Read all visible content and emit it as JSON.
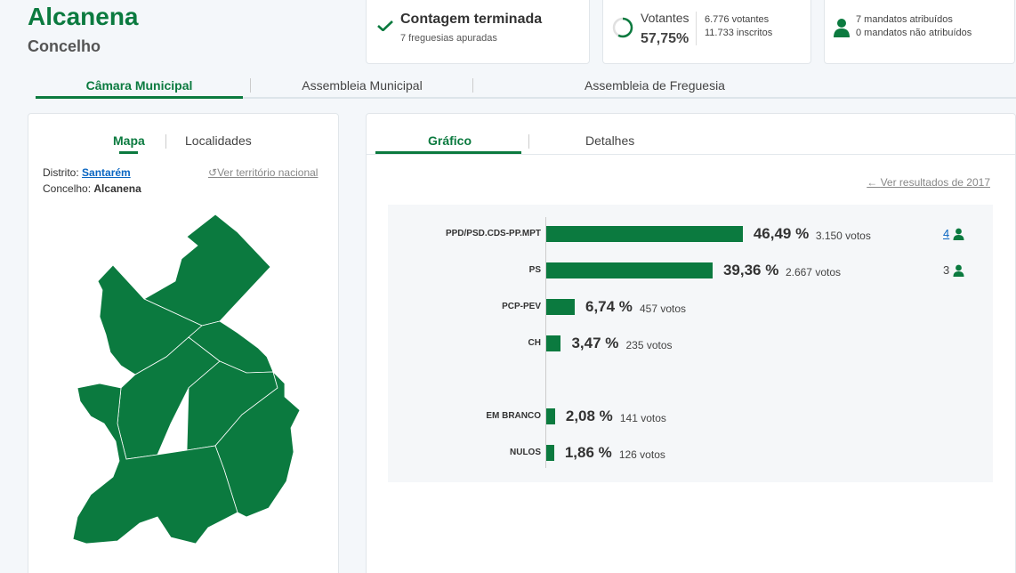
{
  "header": {
    "name": "Alcanena",
    "type": "Concelho"
  },
  "stats": {
    "count": {
      "title": "Contagem terminada",
      "subtitle": "7 freguesias apuradas",
      "icon": "check-icon"
    },
    "turnout": {
      "label": "Votantes",
      "percent": "57,75%",
      "voters": "6.776 votantes",
      "registered": "11.733 inscritos",
      "icon": "turnout-ring-icon"
    },
    "seats": {
      "assigned": "7 mandatos atribuídos",
      "unassigned": "0 mandatos não atribuídos",
      "icon": "person-icon"
    }
  },
  "main_tabs": [
    "Câmara Municipal",
    "Assembleia Municipal",
    "Assembleia de Freguesia"
  ],
  "left": {
    "tabs": [
      "Mapa",
      "Localidades"
    ],
    "district_label": "Distrito:",
    "district": "Santarém",
    "municipality_label": "Concelho:",
    "municipality": "Alcanena",
    "national_link": "Ver território nacional"
  },
  "right": {
    "tabs": [
      "Gráfico",
      "Detalhes"
    ],
    "back_link": "Ver resultados de 2017"
  },
  "chart_data": {
    "type": "bar",
    "orientation": "horizontal",
    "categories": [
      "PPD/PSD.CDS-PP.MPT",
      "PS",
      "PCP-PEV",
      "CH",
      "EM BRANCO",
      "NULOS"
    ],
    "values": [
      46.49,
      39.36,
      6.74,
      3.47,
      2.08,
      1.86
    ],
    "labels": [
      "46,49 %",
      "39,36 %",
      "6,74 %",
      "3,47 %",
      "2,08 %",
      "1,86 %"
    ],
    "votes": [
      "3.150 votos",
      "2.667 votos",
      "457 votos",
      "235 votos",
      "141 votos",
      "126 votos"
    ],
    "seats": [
      "4",
      "3",
      "",
      "",
      "",
      ""
    ],
    "color": "#0b7a3f"
  },
  "colors": {
    "accent": "#0b7a3f",
    "link": "#0a66c2"
  }
}
